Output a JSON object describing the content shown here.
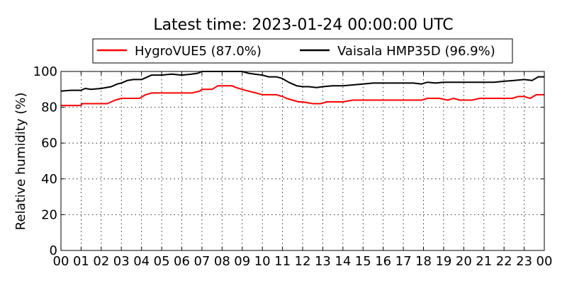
{
  "chart_data": {
    "type": "line",
    "title": "Latest time: 2023-01-24 00:00:00 UTC",
    "xlabel": "",
    "ylabel": "Relative humidity (%)",
    "xlim": [
      0,
      24
    ],
    "ylim": [
      0,
      100
    ],
    "grid": true,
    "legend_placement": "top-center",
    "x_ticks": [
      "00",
      "01",
      "02",
      "03",
      "04",
      "05",
      "06",
      "07",
      "08",
      "09",
      "10",
      "11",
      "12",
      "13",
      "14",
      "15",
      "16",
      "17",
      "18",
      "19",
      "20",
      "21",
      "22",
      "23",
      "00"
    ],
    "y_ticks": [
      0,
      20,
      40,
      60,
      80,
      100
    ],
    "series": [
      {
        "name": "HygroVUE5 (87.0%)",
        "color": "#ff0000",
        "points": [
          [
            0,
            81
          ],
          [
            1,
            81
          ],
          [
            1.05,
            82
          ],
          [
            2,
            82
          ],
          [
            2.3,
            82
          ],
          [
            2.5,
            83
          ],
          [
            2.7,
            84
          ],
          [
            3,
            85
          ],
          [
            3.5,
            85
          ],
          [
            3.9,
            85
          ],
          [
            4.2,
            87
          ],
          [
            4.5,
            88
          ],
          [
            5,
            88
          ],
          [
            5.5,
            88
          ],
          [
            6,
            88
          ],
          [
            6.5,
            88
          ],
          [
            6.9,
            89
          ],
          [
            7,
            90
          ],
          [
            7.5,
            90
          ],
          [
            7.8,
            92
          ],
          [
            8.5,
            92
          ],
          [
            8.7,
            91
          ],
          [
            9,
            90
          ],
          [
            9.3,
            89
          ],
          [
            9.7,
            88
          ],
          [
            10,
            87
          ],
          [
            10.4,
            87
          ],
          [
            10.7,
            87
          ],
          [
            11,
            86
          ],
          [
            11.2,
            85
          ],
          [
            11.5,
            84
          ],
          [
            11.8,
            83
          ],
          [
            12,
            83
          ],
          [
            12.5,
            82
          ],
          [
            12.9,
            82
          ],
          [
            13.2,
            83
          ],
          [
            13.6,
            83
          ],
          [
            14,
            83
          ],
          [
            14.5,
            84
          ],
          [
            15,
            84
          ],
          [
            15.5,
            84
          ],
          [
            16,
            84
          ],
          [
            16.5,
            84
          ],
          [
            17,
            84
          ],
          [
            17.5,
            84
          ],
          [
            17.9,
            84
          ],
          [
            18.2,
            85
          ],
          [
            18.8,
            85
          ],
          [
            19.2,
            84
          ],
          [
            19.5,
            85
          ],
          [
            19.8,
            84
          ],
          [
            20,
            84
          ],
          [
            20.4,
            84
          ],
          [
            20.8,
            85
          ],
          [
            21,
            85
          ],
          [
            21.5,
            85
          ],
          [
            22,
            85
          ],
          [
            22.4,
            85
          ],
          [
            22.7,
            86
          ],
          [
            23,
            86
          ],
          [
            23.3,
            85
          ],
          [
            23.6,
            87
          ],
          [
            24,
            87
          ]
        ]
      },
      {
        "name": "Vaisala HMP35D (96.9%)",
        "color": "#000000",
        "points": [
          [
            0,
            89
          ],
          [
            0.5,
            89.5
          ],
          [
            1,
            89.5
          ],
          [
            1.2,
            90.5
          ],
          [
            1.5,
            90
          ],
          [
            2,
            90.5
          ],
          [
            2.5,
            91.5
          ],
          [
            2.8,
            93
          ],
          [
            3,
            93.5
          ],
          [
            3.3,
            95
          ],
          [
            3.6,
            95.5
          ],
          [
            4,
            95.5
          ],
          [
            4.2,
            96.5
          ],
          [
            4.5,
            98
          ],
          [
            5,
            98
          ],
          [
            5.5,
            98.5
          ],
          [
            6,
            98
          ],
          [
            6.5,
            98.5
          ],
          [
            6.8,
            99
          ],
          [
            7,
            100
          ],
          [
            7.5,
            100
          ],
          [
            8,
            100
          ],
          [
            8.5,
            100
          ],
          [
            9,
            100
          ],
          [
            9.3,
            99
          ],
          [
            9.6,
            98.5
          ],
          [
            10,
            98
          ],
          [
            10.3,
            97
          ],
          [
            10.7,
            97
          ],
          [
            11,
            96
          ],
          [
            11.3,
            94
          ],
          [
            11.7,
            92
          ],
          [
            12,
            91.5
          ],
          [
            12.3,
            91.5
          ],
          [
            12.7,
            91
          ],
          [
            13,
            91.5
          ],
          [
            13.5,
            92
          ],
          [
            14,
            92
          ],
          [
            14.5,
            92.5
          ],
          [
            15,
            93
          ],
          [
            15.5,
            93.5
          ],
          [
            16,
            93.5
          ],
          [
            16.5,
            93.5
          ],
          [
            17,
            93.5
          ],
          [
            17.5,
            93.5
          ],
          [
            17.9,
            93
          ],
          [
            18.2,
            94
          ],
          [
            18.6,
            93.5
          ],
          [
            19,
            94
          ],
          [
            19.5,
            94
          ],
          [
            20,
            94
          ],
          [
            20.5,
            94
          ],
          [
            21,
            94
          ],
          [
            21.5,
            94
          ],
          [
            22,
            94.5
          ],
          [
            22.5,
            95
          ],
          [
            23,
            95.5
          ],
          [
            23.4,
            95
          ],
          [
            23.7,
            97
          ],
          [
            24,
            97
          ]
        ]
      }
    ]
  }
}
